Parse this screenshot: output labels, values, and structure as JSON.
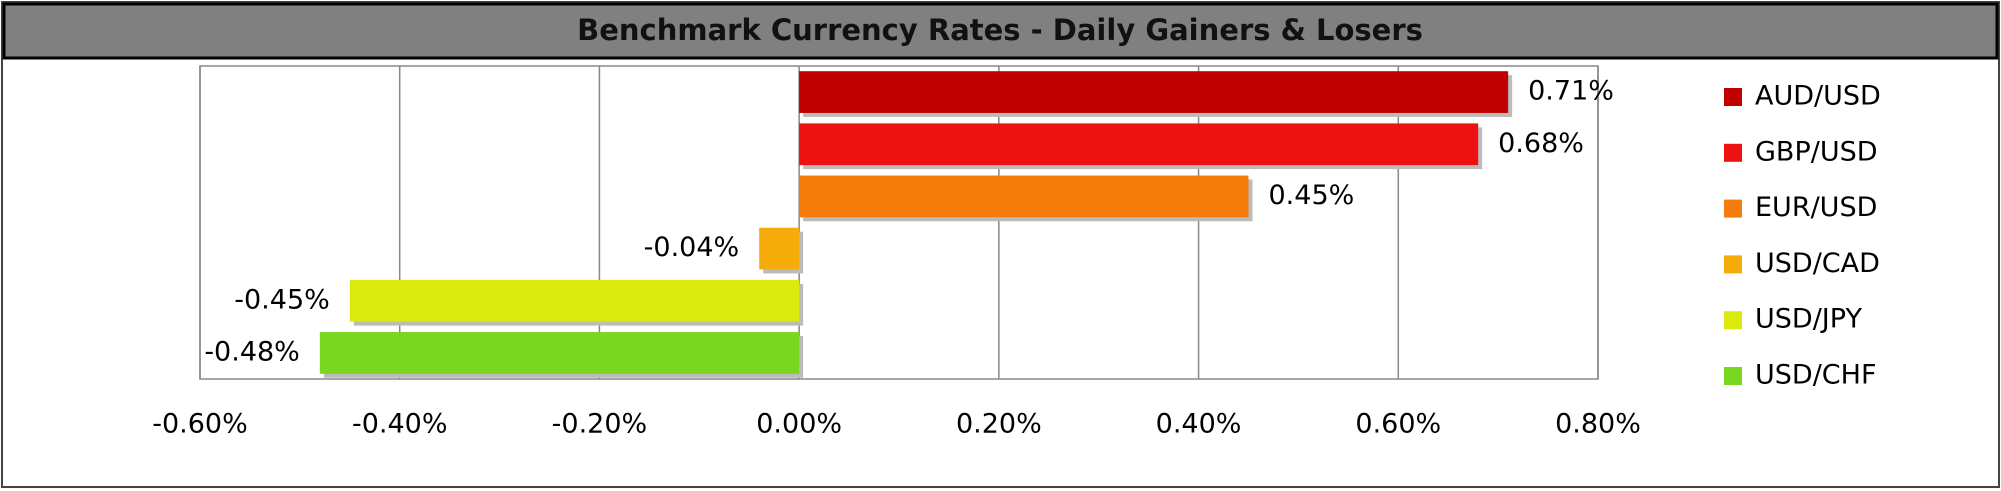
{
  "chart_data": {
    "type": "bar",
    "orientation": "horizontal",
    "title": "Benchmark Currency Rates - Daily Gainers & Losers",
    "categories": [
      "AUD/USD",
      "GBP/USD",
      "EUR/USD",
      "USD/CAD",
      "USD/JPY",
      "USD/CHF"
    ],
    "values": [
      0.71,
      0.68,
      0.45,
      -0.04,
      -0.45,
      -0.48
    ],
    "value_labels": [
      "0.71%",
      "0.68%",
      "0.45%",
      "-0.04%",
      "-0.45%",
      "-0.48%"
    ],
    "colors": [
      "#c00000",
      "#ee1111",
      "#f57c0a",
      "#f5ac0a",
      "#d9ea0c",
      "#7ad61e"
    ],
    "xlim": [
      -0.6,
      0.8
    ],
    "xticks": [
      {
        "value": -0.6,
        "label": "-0.60%"
      },
      {
        "value": -0.4,
        "label": "-0.40%"
      },
      {
        "value": -0.2,
        "label": "-0.20%"
      },
      {
        "value": 0,
        "label": "0.00%"
      },
      {
        "value": 0.2,
        "label": "0.20%"
      },
      {
        "value": 0.4,
        "label": "0.40%"
      },
      {
        "value": 0.6,
        "label": "0.60%"
      },
      {
        "value": 0.8,
        "label": "0.80%"
      }
    ],
    "grid": true,
    "legend": "right"
  }
}
